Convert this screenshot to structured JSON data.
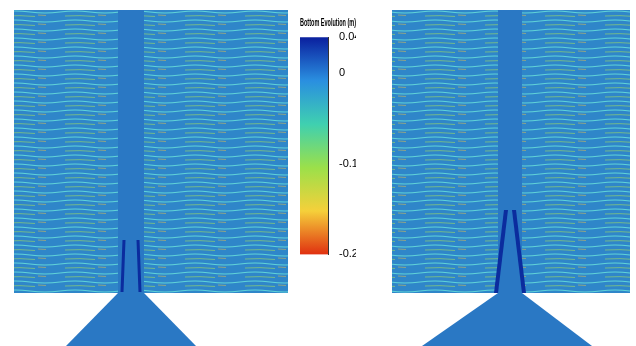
{
  "chart_data": {
    "type": "heatmap",
    "title": "Bottom Evolution (m)",
    "colorbar": {
      "range": [
        -0.2,
        0.04
      ],
      "ticks": [
        0.04,
        0,
        -0.1,
        -0.2
      ],
      "colors": [
        "#0a1f9e",
        "#2a8fe0",
        "#3fd0b0",
        "#9be04a",
        "#f5d03a",
        "#e03010"
      ]
    }
  }
}
